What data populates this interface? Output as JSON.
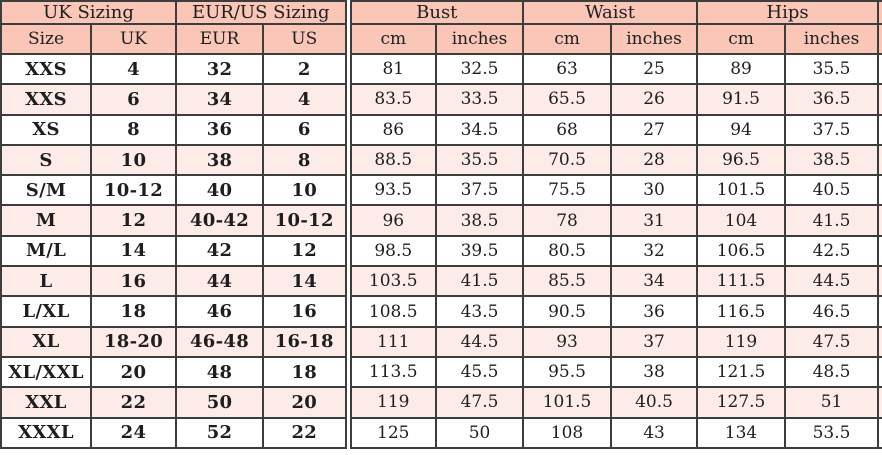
{
  "table": {
    "column_groups": [
      {
        "label": "UK Sizing",
        "span": 2
      },
      {
        "label": "EUR/US Sizing",
        "span": 2
      },
      {
        "label": "Bust",
        "span": 2
      },
      {
        "label": "Waist",
        "span": 2
      },
      {
        "label": "Hips",
        "span": 2
      }
    ],
    "sub_headers": [
      "Size",
      "UK",
      "EUR",
      "US",
      "cm",
      "inches",
      "cm",
      "inches",
      "cm",
      "inches"
    ],
    "rows": [
      [
        "XXS",
        "4",
        "32",
        "2",
        "81",
        "32.5",
        "63",
        "25",
        "89",
        "35.5"
      ],
      [
        "XXS",
        "6",
        "34",
        "4",
        "83.5",
        "33.5",
        "65.5",
        "26",
        "91.5",
        "36.5"
      ],
      [
        "XS",
        "8",
        "36",
        "6",
        "86",
        "34.5",
        "68",
        "27",
        "94",
        "37.5"
      ],
      [
        "S",
        "10",
        "38",
        "8",
        "88.5",
        "35.5",
        "70.5",
        "28",
        "96.5",
        "38.5"
      ],
      [
        "S/M",
        "10-12",
        "40",
        "10",
        "93.5",
        "37.5",
        "75.5",
        "30",
        "101.5",
        "40.5"
      ],
      [
        "M",
        "12",
        "40-42",
        "10-12",
        "96",
        "38.5",
        "78",
        "31",
        "104",
        "41.5"
      ],
      [
        "M/L",
        "14",
        "42",
        "12",
        "98.5",
        "39.5",
        "80.5",
        "32",
        "106.5",
        "42.5"
      ],
      [
        "L",
        "16",
        "44",
        "14",
        "103.5",
        "41.5",
        "85.5",
        "34",
        "111.5",
        "44.5"
      ],
      [
        "L/XL",
        "18",
        "46",
        "16",
        "108.5",
        "43.5",
        "90.5",
        "36",
        "116.5",
        "46.5"
      ],
      [
        "XL",
        "18-20",
        "46-48",
        "16-18",
        "111",
        "44.5",
        "93",
        "37",
        "119",
        "47.5"
      ],
      [
        "XL/XXL",
        "20",
        "48",
        "18",
        "113.5",
        "45.5",
        "95.5",
        "38",
        "121.5",
        "48.5"
      ],
      [
        "XXL",
        "22",
        "50",
        "20",
        "119",
        "47.5",
        "101.5",
        "40.5",
        "127.5",
        "51"
      ],
      [
        "XXXL",
        "24",
        "52",
        "22",
        "125",
        "50",
        "108",
        "43",
        "134",
        "53.5"
      ]
    ]
  },
  "colors": {
    "header_bg": "#f9c6b8",
    "row_alt_bg": "#fcebe6",
    "row_bg": "#ffffff",
    "border": "#3d3d3d",
    "text": "#1e1e1e"
  }
}
